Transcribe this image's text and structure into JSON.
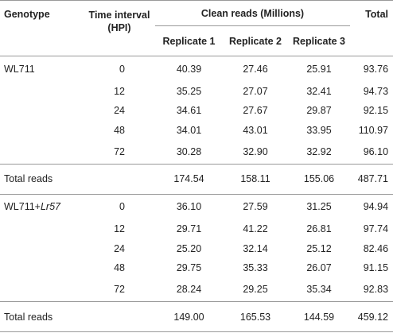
{
  "table": {
    "header": {
      "genotype": "Genotype",
      "time_interval": [
        "Time interval",
        "(HPI)"
      ],
      "clean_reads": "Clean reads (Millions)",
      "replicates": [
        "Replicate 1",
        "Replicate 2",
        "Replicate 3"
      ],
      "total": "Total"
    },
    "groups": [
      {
        "genotype": [
          {
            "text": "WL711"
          }
        ],
        "rows": [
          [
            "0",
            "40.39",
            "27.46",
            "25.91",
            "93.76"
          ],
          [
            "12",
            "35.25",
            "27.07",
            "32.41",
            "94.73"
          ],
          [
            "24",
            "34.61",
            "27.67",
            "29.87",
            "92.15"
          ],
          [
            "48",
            "34.01",
            "43.01",
            "33.95",
            "110.97"
          ],
          [
            "72",
            "30.28",
            "32.90",
            "32.92",
            "96.10"
          ]
        ],
        "total": {
          "label": "Total reads",
          "values": [
            "174.54",
            "158.11",
            "155.06",
            "487.71"
          ]
        }
      },
      {
        "genotype": [
          {
            "text": "WL711+"
          },
          {
            "text": "Lr57",
            "italic": true
          }
        ],
        "rows": [
          [
            "0",
            "36.10",
            "27.59",
            "31.25",
            "94.94"
          ],
          [
            "12",
            "29.71",
            "41.22",
            "26.81",
            "97.74"
          ],
          [
            "24",
            "25.20",
            "32.14",
            "25.12",
            "82.46"
          ],
          [
            "48",
            "29.75",
            "35.33",
            "26.07",
            "91.15"
          ],
          [
            "72",
            "28.24",
            "29.25",
            "35.34",
            "92.83"
          ]
        ],
        "total": {
          "label": "Total reads",
          "values": [
            "149.00",
            "165.53",
            "144.59",
            "459.12"
          ]
        }
      }
    ]
  }
}
